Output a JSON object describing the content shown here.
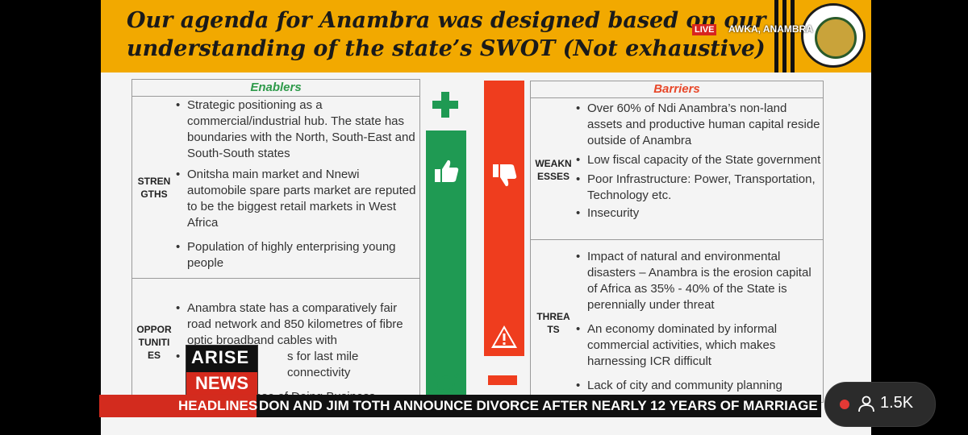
{
  "slide": {
    "title_line1": "Our agenda for Anambra was designed based on our",
    "title_line2": "understanding of the state’s SWOT (Not exhaustive)"
  },
  "overlay": {
    "live_label": "LIVE",
    "location": "AWKA, ANAMBRA"
  },
  "enablers": {
    "header": "Enablers",
    "strengths_label": "STREN GTHS",
    "strengths": [
      "Strategic positioning as a commercial/industrial hub. The state has boundaries with the North, South-East and South-South states",
      "Onitsha main market and Nnewi automobile spare parts market are reputed to be the biggest retail markets in West Africa",
      "Population of highly enterprising young people"
    ],
    "opportunities_label": "OPPOR TUNITI ES",
    "opportunities": [
      "Anambra state has a comparatively fair road network and 850 kilometres of fibre optic broadband cables with",
      "s for last mile connectivity",
      "ase of Doing Business"
    ]
  },
  "barriers": {
    "header": "Barriers",
    "weaknesses_label": "WEAKN ESSES",
    "weaknesses": [
      "Over 60% of Ndi Anambra’s non-land assets and productive human capital reside outside of Anambra",
      "Low fiscal capacity of the State government",
      "Poor Infrastructure: Power, Transportation, Technology etc.",
      "Insecurity"
    ],
    "threats_label": "THREA TS",
    "threats": [
      "Impact of natural and environmental disasters – Anambra is the erosion capital of Africa as 35% - 40% of the State is perennially under threat",
      "An economy dominated by informal commercial activities, which makes harnessing ICR difficult",
      "Lack of city and community planning"
    ]
  },
  "branding": {
    "arise_top": "ARISE",
    "arise_bottom": "NEWS"
  },
  "ticker": {
    "label": "HEADLINES",
    "text": "DON AND JIM TOTH ANNOUNCE DIVORCE AFTER NEARLY 12 YEARS OF MARRIAGE"
  },
  "viewers": {
    "count": "1.5K"
  },
  "colors": {
    "title_bg": "#f2a900",
    "enabler_green": "#1f9a53",
    "barrier_red": "#ef3d1e",
    "ticker_red": "#d32b1e"
  },
  "icons": [
    "plus-icon",
    "thumbs-up-icon",
    "thumbs-down-icon",
    "warning-icon",
    "sun-icon",
    "minus-icon",
    "person-icon",
    "seal-logo"
  ]
}
